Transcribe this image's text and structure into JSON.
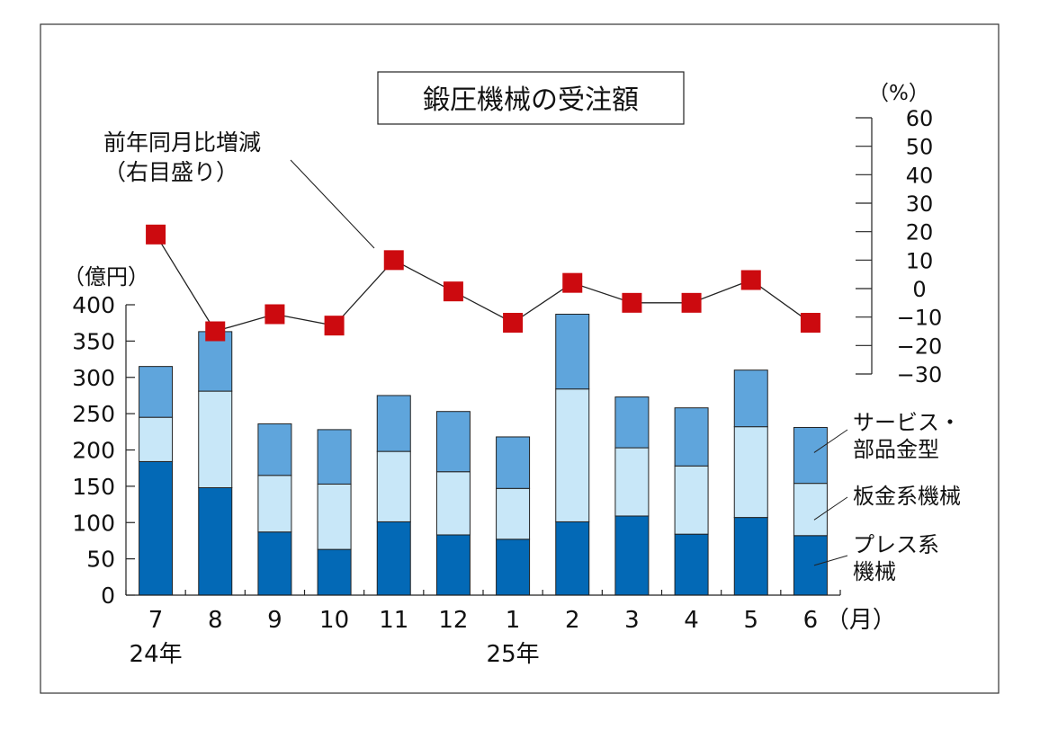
{
  "chart_data": {
    "type": "bar",
    "title": "鍛圧機械の受注額",
    "categories": [
      "7",
      "8",
      "9",
      "10",
      "11",
      "12",
      "1",
      "2",
      "3",
      "4",
      "5",
      "6"
    ],
    "x_unit_label": "（月）",
    "year_labels": [
      {
        "label": "24年",
        "category_index": 0
      },
      {
        "label": "25年",
        "category_index": 6
      }
    ],
    "stacked": true,
    "series": [
      {
        "name": "プレス系\n機械",
        "color": "#0369b6",
        "values": [
          184,
          148,
          87,
          63,
          101,
          83,
          77,
          101,
          109,
          84,
          107,
          82
        ]
      },
      {
        "name": "板金系機械",
        "color": "#c8e7f8",
        "values": [
          61,
          133,
          78,
          90,
          97,
          87,
          70,
          183,
          94,
          94,
          125,
          72
        ]
      },
      {
        "name": "サービス・\n部品金型",
        "color": "#5fa5dc",
        "values": [
          70,
          82,
          71,
          75,
          77,
          83,
          71,
          103,
          70,
          80,
          78,
          77
        ]
      }
    ],
    "ylabel": "（億円）",
    "ylim": [
      0,
      400
    ],
    "yticks": [
      0,
      50,
      100,
      150,
      200,
      250,
      300,
      350,
      400
    ],
    "line_series": {
      "name": "前年同月比増減\n（右目盛り）",
      "color": "#cc0a0f",
      "values": [
        19,
        -15,
        -9,
        -13,
        10,
        -1,
        -12,
        2,
        -5,
        -5,
        3,
        -12
      ]
    },
    "y2label": "（%）",
    "y2lim": [
      -30,
      60
    ],
    "y2ticks": [
      60,
      50,
      40,
      30,
      20,
      10,
      0,
      -10,
      -20,
      -30
    ],
    "grid": false
  }
}
